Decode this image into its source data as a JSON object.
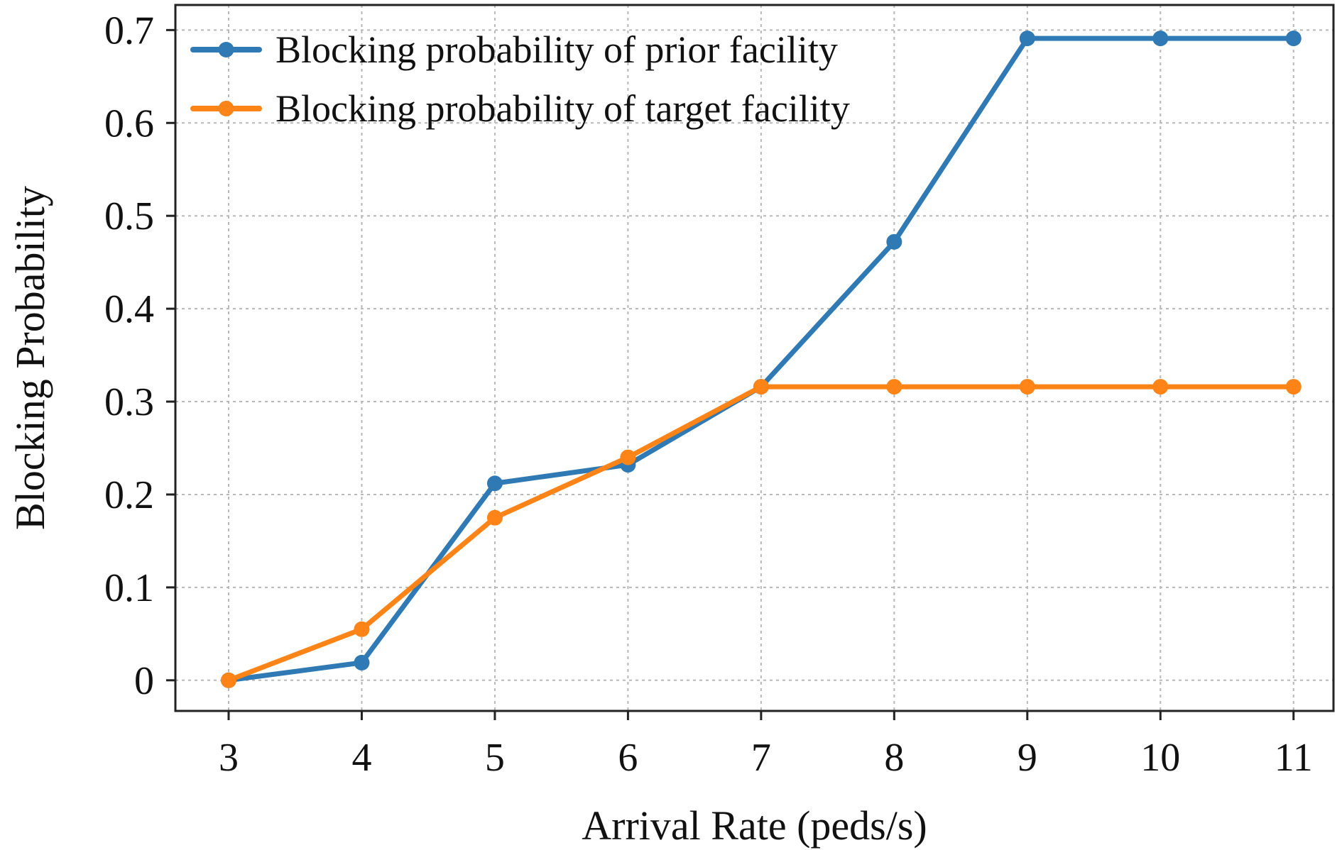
{
  "chart_data": {
    "type": "line",
    "title": "",
    "xlabel": "Arrival Rate (peds/s)",
    "ylabel": "Blocking Probability",
    "x": [
      3,
      4,
      5,
      6,
      7,
      8,
      9,
      10,
      11
    ],
    "xticks": [
      "3",
      "4",
      "5",
      "6",
      "7",
      "8",
      "9",
      "10",
      "11"
    ],
    "yticks": [
      "0",
      "0.1",
      "0.2",
      "0.3",
      "0.4",
      "0.5",
      "0.6",
      "0.7"
    ],
    "ytick_values": [
      0,
      0.1,
      0.2,
      0.3,
      0.4,
      0.5,
      0.6,
      0.7
    ],
    "xlim": [
      2.6,
      11.3
    ],
    "ylim": [
      -0.033,
      0.727
    ],
    "grid": true,
    "legend_position": "top-left",
    "series": [
      {
        "name": "Blocking probability of prior facility",
        "color": "#2f7ab5",
        "values": [
          0.0,
          0.019,
          0.212,
          0.232,
          0.316,
          0.472,
          0.691,
          0.691,
          0.691
        ]
      },
      {
        "name": "Blocking probability of target facility",
        "color": "#ff8418",
        "values": [
          0.0,
          0.055,
          0.175,
          0.24,
          0.316,
          0.316,
          0.316,
          0.316,
          0.316
        ]
      }
    ]
  }
}
